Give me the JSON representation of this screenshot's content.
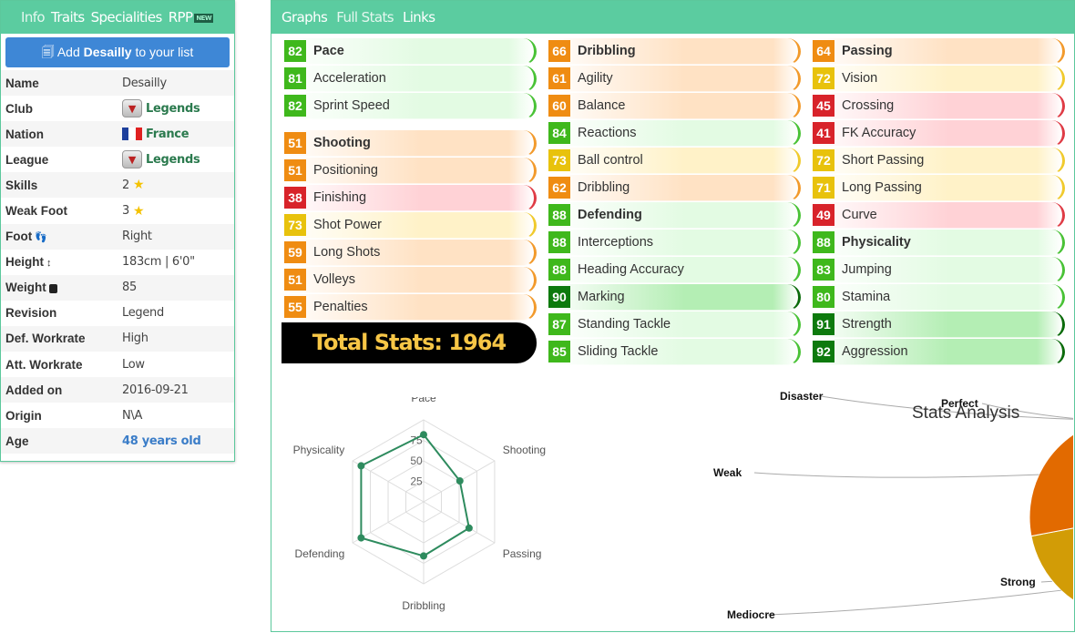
{
  "left_tabs": [
    "Info",
    "Traits",
    "Specialities",
    "RPP"
  ],
  "left_new_badge": "NEW",
  "add_button": {
    "pre": "Add ",
    "name": "Desailly",
    "post": " to your list"
  },
  "info": [
    {
      "k": "Name",
      "v": "Desailly",
      "style": "plain"
    },
    {
      "k": "Club",
      "v": "Legends",
      "style": "green",
      "icon": "club-crest-icon"
    },
    {
      "k": "Nation",
      "v": "France",
      "style": "green",
      "icon": "france-flag-icon"
    },
    {
      "k": "League",
      "v": "Legends",
      "style": "green",
      "icon": "league-crest-icon"
    },
    {
      "k": "Skills",
      "v": "2",
      "style": "plain",
      "icon": "star-icon"
    },
    {
      "k": "Weak Foot",
      "v": "3",
      "style": "plain",
      "icon": "star-icon"
    },
    {
      "k": "Foot",
      "v": "Right",
      "style": "plain",
      "kicon": "footprints-icon"
    },
    {
      "k": "Height",
      "v": "183cm | 6'0\"",
      "style": "plain",
      "kicon": "height-icon"
    },
    {
      "k": "Weight",
      "v": "85",
      "style": "plain",
      "kicon": "weight-icon"
    },
    {
      "k": "Revision",
      "v": "Legend",
      "style": "plain"
    },
    {
      "k": "Def. Workrate",
      "v": "High",
      "style": "plain"
    },
    {
      "k": "Att. Workrate",
      "v": "Low",
      "style": "plain"
    },
    {
      "k": "Added on",
      "v": "2016-09-21",
      "style": "plain"
    },
    {
      "k": "Origin",
      "v": "N\\A",
      "style": "plain"
    },
    {
      "k": "Age",
      "v": "48 years old",
      "style": "blue"
    }
  ],
  "right_tabs": [
    "Graphs",
    "Full Stats",
    "Links"
  ],
  "stats": {
    "col1": [
      {
        "v": 82,
        "n": "Pace",
        "h": true
      },
      {
        "v": 81,
        "n": "Acceleration"
      },
      {
        "v": 82,
        "n": "Sprint Speed"
      },
      {
        "gap": true
      },
      {
        "v": 51,
        "n": "Shooting",
        "h": true
      },
      {
        "v": 51,
        "n": "Positioning"
      },
      {
        "v": 38,
        "n": "Finishing"
      },
      {
        "v": 73,
        "n": "Shot Power"
      },
      {
        "v": 59,
        "n": "Long Shots"
      },
      {
        "v": 51,
        "n": "Volleys"
      },
      {
        "v": 55,
        "n": "Penalties"
      }
    ],
    "col2": [
      {
        "v": 66,
        "n": "Dribbling",
        "h": true
      },
      {
        "v": 61,
        "n": "Agility"
      },
      {
        "v": 60,
        "n": "Balance"
      },
      {
        "v": 84,
        "n": "Reactions"
      },
      {
        "v": 73,
        "n": "Ball control"
      },
      {
        "v": 62,
        "n": "Dribbling"
      },
      {
        "v": 88,
        "n": "Defending",
        "h": true
      },
      {
        "v": 88,
        "n": "Interceptions"
      },
      {
        "v": 88,
        "n": "Heading Accuracy"
      },
      {
        "v": 90,
        "n": "Marking"
      },
      {
        "v": 87,
        "n": "Standing Tackle"
      },
      {
        "v": 85,
        "n": "Sliding Tackle"
      }
    ],
    "col3": [
      {
        "v": 64,
        "n": "Passing",
        "h": true
      },
      {
        "v": 72,
        "n": "Vision"
      },
      {
        "v": 45,
        "n": "Crossing"
      },
      {
        "v": 41,
        "n": "FK Accuracy"
      },
      {
        "v": 72,
        "n": "Short Passing"
      },
      {
        "v": 71,
        "n": "Long Passing"
      },
      {
        "v": 49,
        "n": "Curve"
      },
      {
        "v": 88,
        "n": "Physicality",
        "h": true
      },
      {
        "v": 83,
        "n": "Jumping"
      },
      {
        "v": 80,
        "n": "Stamina"
      },
      {
        "v": 91,
        "n": "Strength"
      },
      {
        "v": 92,
        "n": "Aggression"
      }
    ]
  },
  "total_label": "Total Stats: 1964",
  "chart_data": [
    {
      "type": "radar",
      "categories": [
        "Pace",
        "Shooting",
        "Passing",
        "Dribbling",
        "Defending",
        "Physicality"
      ],
      "values": [
        82,
        51,
        64,
        66,
        88,
        88
      ],
      "ticks": [
        "25",
        "50",
        "75"
      ],
      "range": [
        0,
        100
      ],
      "color": "#2e8b5e"
    },
    {
      "type": "pie",
      "title": "Stats Analysis",
      "labels": [
        "Perfect",
        "Strong",
        "Mediocre",
        "Weak",
        "Disaster"
      ],
      "values": [
        3,
        10,
        5,
        5,
        2
      ],
      "colors": [
        "#0a6e06",
        "#2fb412",
        "#d29c06",
        "#e26a00",
        "#d2161b"
      ]
    }
  ]
}
